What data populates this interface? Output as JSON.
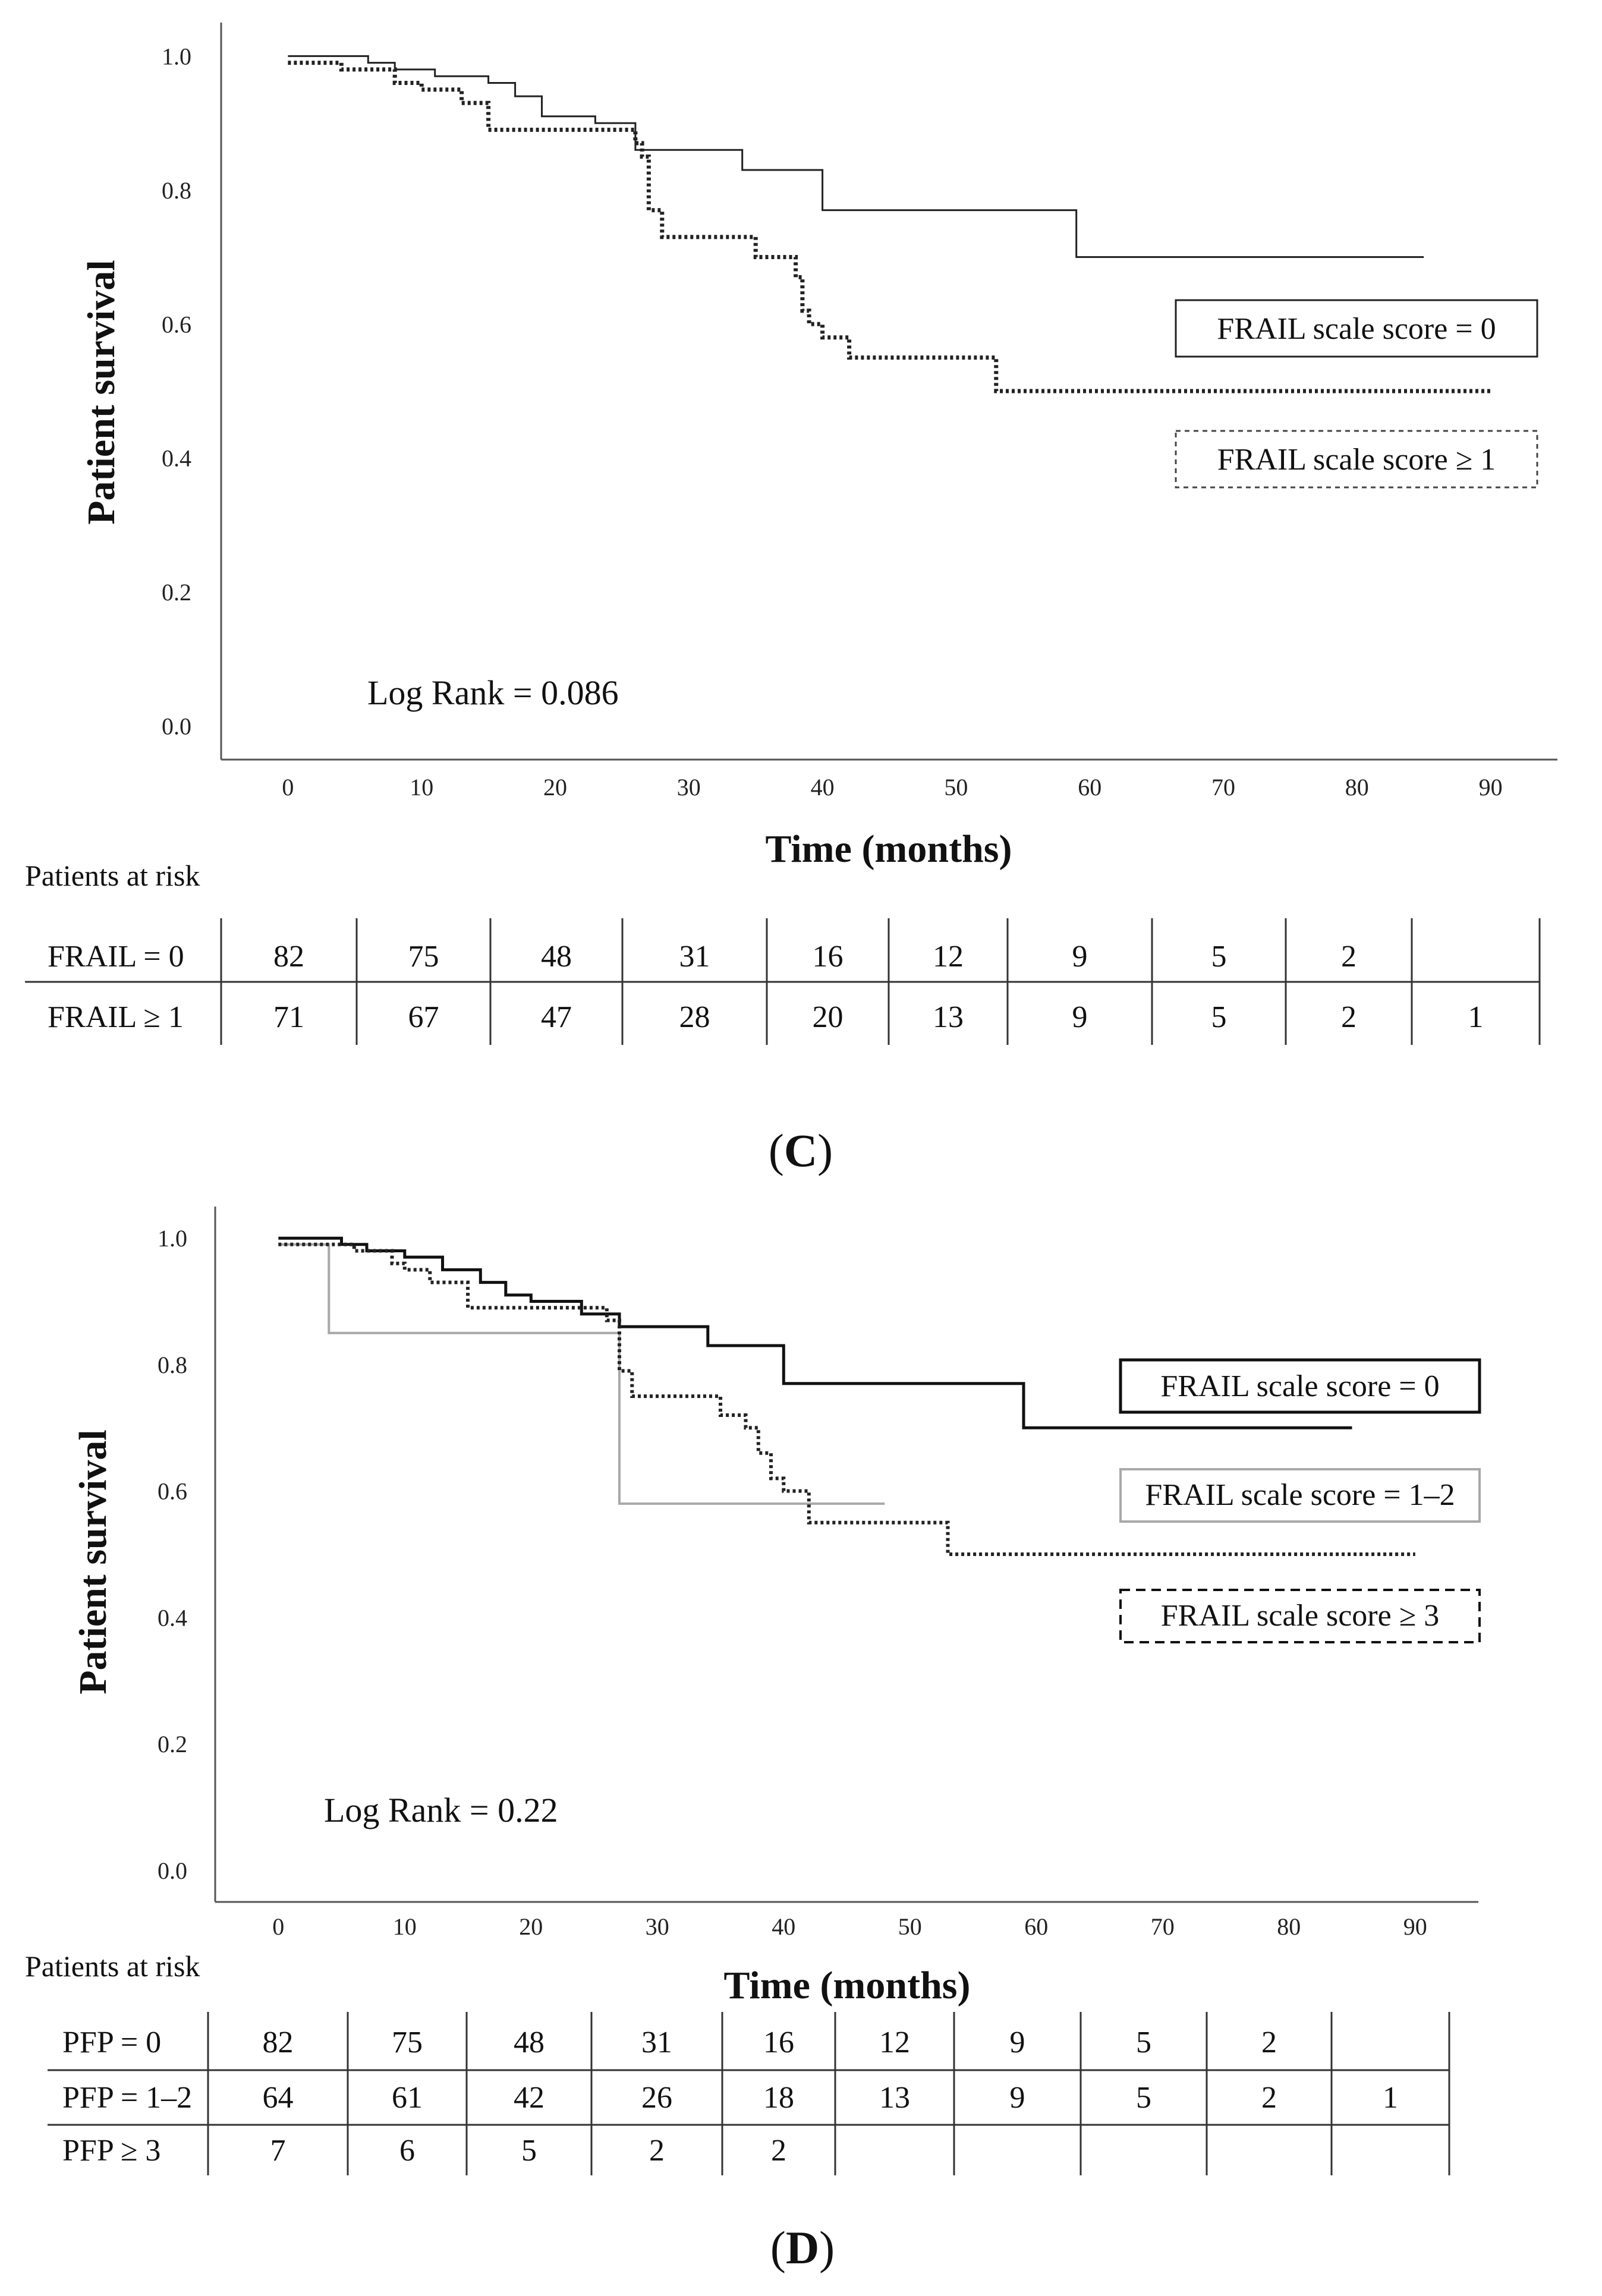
{
  "colors": {
    "solid": "#222222",
    "dotted": "#222222",
    "gray": "#a9a9a9"
  },
  "chart_data": [
    {
      "type": "line",
      "panel": "C",
      "panel_label_open": "(",
      "panel_label_letter": "C",
      "panel_label_close": ")",
      "ylabel": "Patient survival",
      "xlabel": "Time (months)",
      "xlim": [
        -5,
        95
      ],
      "ylim": [
        -0.05,
        1.05
      ],
      "xticks": [
        0,
        10,
        20,
        30,
        40,
        50,
        60,
        70,
        80,
        90
      ],
      "yticks": [
        "0.0",
        "0.2",
        "0.4",
        "0.6",
        "0.8",
        "1.0"
      ],
      "log_rank": "Log Rank = 0.086",
      "series": [
        {
          "name": "FRAIL scale score = 0",
          "style": "solid",
          "x": [
            0,
            6,
            8,
            11,
            15,
            17,
            19,
            23,
            26,
            34,
            40,
            59,
            85
          ],
          "y": [
            1.0,
            0.99,
            0.98,
            0.97,
            0.96,
            0.94,
            0.91,
            0.9,
            0.86,
            0.83,
            0.77,
            0.7,
            0.7
          ]
        },
        {
          "name": "FRAIL scale score ≥ 1",
          "style": "dotted",
          "x": [
            0,
            4,
            8,
            10,
            13,
            15,
            26,
            26.5,
            27,
            28,
            35,
            38,
            38.5,
            39,
            40,
            42,
            53,
            90
          ],
          "y": [
            0.99,
            0.98,
            0.96,
            0.95,
            0.93,
            0.89,
            0.87,
            0.85,
            0.77,
            0.73,
            0.7,
            0.67,
            0.62,
            0.6,
            0.58,
            0.55,
            0.5,
            0.5
          ]
        }
      ],
      "risk_table": {
        "title": "Patients at risk",
        "rows": [
          {
            "label": "FRAIL = 0",
            "values": [
              "82",
              "75",
              "48",
              "31",
              "16",
              "12",
              "9",
              "5",
              "2",
              ""
            ]
          },
          {
            "label": "FRAIL ≥ 1",
            "values": [
              "71",
              "67",
              "47",
              "28",
              "20",
              "13",
              "9",
              "5",
              "2",
              "1"
            ]
          }
        ]
      }
    },
    {
      "type": "line",
      "panel": "D",
      "panel_label_open": "(",
      "panel_label_letter": "D",
      "panel_label_close": ")",
      "ylabel": "Patient survival",
      "xlabel": "Time (months)",
      "xlim": [
        -5,
        95
      ],
      "ylim": [
        -0.05,
        1.05
      ],
      "xticks": [
        0,
        10,
        20,
        30,
        40,
        50,
        60,
        70,
        80,
        90
      ],
      "yticks": [
        "0.0",
        "0.2",
        "0.4",
        "0.6",
        "0.8",
        "1.0"
      ],
      "log_rank": "Log Rank = 0.22",
      "series": [
        {
          "name": "FRAIL scale score = 0",
          "style": "solid-thick",
          "x": [
            0,
            5,
            7,
            10,
            13,
            16,
            18,
            20,
            24,
            27,
            34,
            40,
            59,
            85
          ],
          "y": [
            1.0,
            0.99,
            0.98,
            0.97,
            0.95,
            0.93,
            0.91,
            0.9,
            0.88,
            0.86,
            0.83,
            0.77,
            0.7,
            0.7
          ]
        },
        {
          "name": "FRAIL scale score = 1–2",
          "style": "gray",
          "x": [
            0,
            4,
            27,
            48
          ],
          "y": [
            0.99,
            0.85,
            0.58,
            0.58
          ]
        },
        {
          "name": "FRAIL scale score ≥ 3",
          "style": "dashed",
          "x": [
            0,
            6,
            9,
            10,
            12,
            15,
            26,
            27,
            28,
            35,
            37,
            38,
            39,
            40,
            42,
            53,
            90
          ],
          "y": [
            0.99,
            0.98,
            0.96,
            0.95,
            0.93,
            0.89,
            0.87,
            0.79,
            0.75,
            0.72,
            0.7,
            0.66,
            0.62,
            0.6,
            0.55,
            0.5,
            0.5
          ]
        }
      ],
      "risk_table": {
        "title": "Patients at risk",
        "rows": [
          {
            "label": "PFP = 0",
            "values": [
              "82",
              "75",
              "48",
              "31",
              "16",
              "12",
              "9",
              "5",
              "2",
              ""
            ]
          },
          {
            "label": "PFP = 1–2",
            "values": [
              "64",
              "61",
              "42",
              "26",
              "18",
              "13",
              "9",
              "5",
              "2",
              "1"
            ]
          },
          {
            "label": "PFP ≥ 3",
            "values": [
              "7",
              "6",
              "5",
              "2",
              "2",
              "",
              "",
              "",
              "",
              ""
            ]
          }
        ]
      }
    }
  ]
}
